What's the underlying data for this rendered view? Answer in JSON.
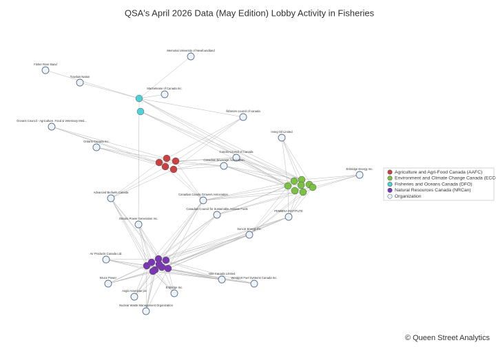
{
  "title": "QSA's April 2026 Data (May Edition) Lobby Activity in Fisheries",
  "nodes": [
    {
      "label": "Memorial University of Newfoundland"
    },
    {
      "label": "Fisher River Band"
    },
    {
      "label": "Traviluis Nation"
    },
    {
      "label": "Marinelease of Canada Inc."
    },
    {
      "label": "fisheries council of canada"
    },
    {
      "label": "Oceans Council - Agriculture, Food & Veterinary Med..."
    },
    {
      "label": "Ontario Canada Inc."
    },
    {
      "label": "Irving Oil Limited"
    },
    {
      "label": "Canola Council of Canada"
    },
    {
      "label": "Canadian Beverage Association"
    },
    {
      "label": "Enbridge Energy Inc."
    },
    {
      "label": "Advanced Biofuels Canada"
    },
    {
      "label": "Canadian Canola Growers Association"
    },
    {
      "label": "Canadian Council for Sustainable Aviation Fuels"
    },
    {
      "label": "PEMBINA INSTITUTE"
    },
    {
      "label": "Ontario Power Generation Inc."
    },
    {
      "label": "Suncor Energy Inc."
    },
    {
      "label": "Air Products Canada Ltd."
    },
    {
      "label": "Bruce Power"
    },
    {
      "label": "Vale Canada Limited"
    },
    {
      "label": "Westport Fuel Systems Canada Inc."
    },
    {
      "label": "Anglo American plc"
    },
    {
      "label": "Enbridge Inc."
    },
    {
      "label": "Nuclear Waste Management Organization"
    }
  ],
  "legend": {
    "items": [
      {
        "label": "Agriculture and Agri-Food Canada (AAFC)",
        "color": "#c94141"
      },
      {
        "label": "Environment and Climate Change Canada (ECCC)",
        "color": "#7cc242"
      },
      {
        "label": "Fisheries and Oceans Canada (DFO)",
        "color": "#4fd1d9"
      },
      {
        "label": "Natural Resources Canada (NRCan)",
        "color": "#7b36b3"
      },
      {
        "label": "Organization",
        "color": "#eef3f8"
      }
    ]
  },
  "footer": "© Queen Street Analytics"
}
